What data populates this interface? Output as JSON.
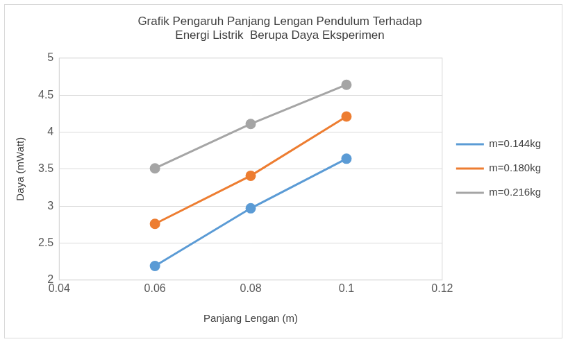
{
  "chart_data": {
    "type": "line",
    "title": [
      "Grafik Pengaruh Panjang Lengan Pendulum Terhadap",
      "Energi Listrik  Berupa Daya Eksperimen"
    ],
    "x_label": "Panjang Lengan (m)",
    "y_label": "Daya (mWatt)",
    "x": [
      0.06,
      0.08,
      0.1
    ],
    "series": [
      {
        "name": "m=0.144kg",
        "color": "#5b9bd5",
        "values": [
          2.19,
          2.97,
          3.64
        ]
      },
      {
        "name": "m=0.180kg",
        "color": "#ed7d31",
        "values": [
          2.76,
          3.41,
          4.21
        ]
      },
      {
        "name": "m=0.216kg",
        "color": "#a5a5a5",
        "values": [
          3.51,
          4.11,
          4.64
        ]
      }
    ],
    "xlim": [
      0.04,
      0.12
    ],
    "xticks": [
      0.04,
      0.06,
      0.08,
      0.1,
      0.12
    ],
    "ylim": [
      2,
      5
    ],
    "yticks": [
      2,
      2.5,
      3,
      3.5,
      4,
      4.5,
      5
    ],
    "grid": true,
    "legend": "right",
    "marker": "circle",
    "line_style": "solid"
  }
}
